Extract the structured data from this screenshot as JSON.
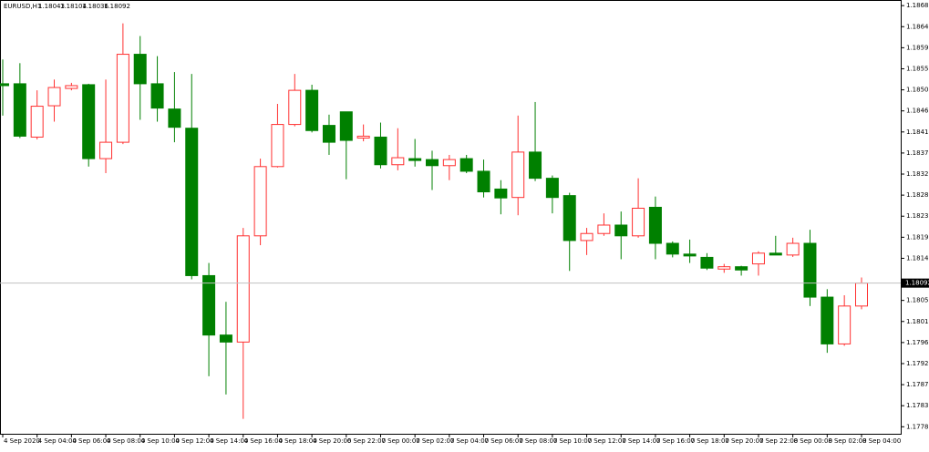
{
  "chart_data": {
    "type": "candlestick",
    "title": "EURUSD,H1",
    "categories": [
      "4 Sep 2020",
      null,
      "4 Sep 04:00",
      null,
      "4 Sep 06:00",
      null,
      "4 Sep 08:00",
      null,
      "4 Sep 10:00",
      null,
      "4 Sep 12:00",
      null,
      "4 Sep 14:00",
      null,
      "4 Sep 16:00",
      null,
      "4 Sep 18:00",
      null,
      "4 Sep 20:00",
      null,
      "6 Sep 22:00",
      null,
      "7 Sep 00:00",
      null,
      "7 Sep 02:00",
      null,
      "7 Sep 04:00",
      null,
      "7 Sep 06:00",
      null,
      "7 Sep 08:00",
      null,
      "7 Sep 10:00",
      null,
      "7 Sep 12:00",
      null,
      "7 Sep 14:00",
      null,
      "7 Sep 16:00",
      null,
      "7 Sep 18:00",
      null,
      "7 Sep 20:00",
      null,
      "7 Sep 22:00",
      null,
      "8 Sep 00:00",
      null,
      "8 Sep 02:00",
      null,
      "8 Sep 04:00"
    ],
    "open": [
      1.18518,
      1.18518,
      1.18404,
      1.18471,
      1.18508,
      1.18516,
      1.18358,
      1.18393,
      1.18581,
      1.18518,
      1.18464,
      1.18423,
      1.18108,
      1.17981,
      1.17966,
      1.18193,
      1.18341,
      1.18431,
      1.18504,
      1.18429,
      1.18458,
      1.18402,
      1.18404,
      1.18345,
      1.18358,
      1.18356,
      1.18343,
      1.18358,
      1.18331,
      1.18293,
      1.18275,
      1.18372,
      1.18316,
      1.18279,
      1.18183,
      1.18198,
      1.18216,
      1.18193,
      1.18254,
      1.18177,
      1.18154,
      1.18147,
      1.18122,
      1.18127,
      1.18133,
      1.18156,
      1.18152,
      1.18177,
      1.18062,
      1.17962,
      1.18043
    ],
    "high": [
      1.1857,
      1.18562,
      1.18504,
      1.18527,
      1.1852,
      1.18518,
      1.18527,
      1.18647,
      1.1862,
      1.18577,
      1.18543,
      1.18539,
      1.18135,
      1.18052,
      1.1821,
      1.18358,
      1.18475,
      1.18539,
      1.18516,
      1.18452,
      1.18458,
      1.18431,
      1.18435,
      1.18423,
      1.184,
      1.18375,
      1.18366,
      1.18366,
      1.18356,
      1.18312,
      1.1845,
      1.18479,
      1.18322,
      1.18285,
      1.1821,
      1.18241,
      1.18245,
      1.18316,
      1.18277,
      1.18181,
      1.18185,
      1.18156,
      1.18133,
      1.18129,
      1.1816,
      1.18193,
      1.18189,
      1.18206,
      1.18079,
      1.18066,
      1.18104
    ],
    "low": [
      1.1845,
      1.18402,
      1.18399,
      1.18437,
      1.18504,
      1.18341,
      1.18327,
      1.18389,
      1.18441,
      1.18437,
      1.18393,
      1.181,
      1.17893,
      1.17854,
      1.17802,
      1.18173,
      1.18339,
      1.18427,
      1.18414,
      1.18366,
      1.18314,
      1.18395,
      1.18337,
      1.18333,
      1.18341,
      1.18291,
      1.18312,
      1.18327,
      1.18275,
      1.18239,
      1.18237,
      1.1831,
      1.18241,
      1.18118,
      1.18152,
      1.18193,
      1.18143,
      1.18189,
      1.18143,
      1.18147,
      1.18135,
      1.1812,
      1.18114,
      1.18108,
      1.18108,
      1.18152,
      1.18148,
      1.18043,
      1.17943,
      1.17958,
      1.18036
    ],
    "close": [
      1.18514,
      1.18406,
      1.1847,
      1.1851,
      1.18514,
      1.18358,
      1.18393,
      1.18581,
      1.18518,
      1.18466,
      1.18425,
      1.18108,
      1.17981,
      1.17966,
      1.18193,
      1.18341,
      1.18431,
      1.18504,
      1.18418,
      1.18393,
      1.18397,
      1.18406,
      1.18345,
      1.1836,
      1.18354,
      1.18343,
      1.18356,
      1.18331,
      1.18287,
      1.18274,
      1.18372,
      1.18316,
      1.18275,
      1.18183,
      1.18198,
      1.18216,
      1.18193,
      1.18252,
      1.18177,
      1.18154,
      1.1815,
      1.18124,
      1.18127,
      1.1812,
      1.18156,
      1.18152,
      1.18177,
      1.18062,
      1.17962,
      1.18043,
      1.18092
    ],
    "up_color": "#ff3030",
    "down_color": "#008000",
    "ylim": [
      1.1777,
      1.18697
    ],
    "yticks": [
      1.18685,
      {
        "value": 1.1864,
        "label": "1.18640"
      },
      1.18595,
      {
        "value": 1.1855,
        "label": "1.18550"
      },
      1.18505,
      {
        "value": 1.1846,
        "label": "1.18460"
      },
      1.18415,
      {
        "value": 1.1837,
        "label": "1.18370"
      },
      1.18325,
      {
        "value": 1.1828,
        "label": "1.18280"
      },
      1.18235,
      {
        "value": 1.1819,
        "label": "1.18190"
      },
      1.18145,
      1.18055,
      {
        "value": 1.1801,
        "label": "1.18010"
      },
      1.17965,
      {
        "value": 1.1792,
        "label": "1.17920"
      },
      1.17875,
      {
        "value": 1.1783,
        "label": "1.17830"
      },
      1.17785
    ],
    "grid": false
  }
}
